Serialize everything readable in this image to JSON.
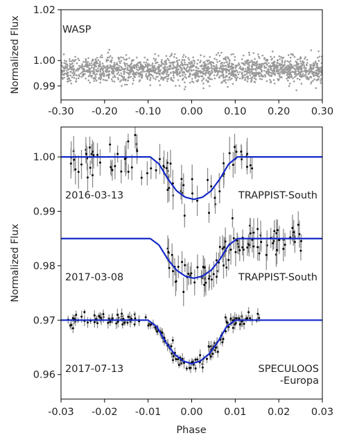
{
  "chart_data": [
    {
      "type": "scatter",
      "ylabel": "Normalized Flux",
      "xlim": [
        -0.3,
        0.3
      ],
      "ylim": [
        0.9845,
        1.02
      ],
      "xticks": [
        -0.3,
        -0.2,
        -0.1,
        0.0,
        0.1,
        0.2,
        0.3
      ],
      "xtick_labels": [
        "-0.30",
        "-0.20",
        "-0.10",
        "0.00",
        "0.10",
        "0.20",
        "0.30"
      ],
      "yticks": [
        0.99,
        1.0,
        1.02
      ],
      "ytick_labels": [
        "0.99",
        "1.00",
        "1.02"
      ],
      "grid": false,
      "series": [
        {
          "name": "WASP",
          "color": "#999999",
          "x_range": [
            -0.3,
            0.3
          ],
          "center": 0.9965,
          "scatter_std": 0.0025,
          "point_count": 1800
        }
      ]
    },
    {
      "type": "line",
      "xlabel": "Phase",
      "ylabel": "Normalized Flux",
      "xlim": [
        -0.03,
        0.03
      ],
      "ylim": [
        0.9555,
        1.0055
      ],
      "xticks": [
        -0.03,
        -0.02,
        -0.01,
        0.0,
        0.01,
        0.02,
        0.03
      ],
      "xtick_labels": [
        "-0.03",
        "-0.02",
        "-0.01",
        "0.00",
        "0.01",
        "0.02",
        "0.03"
      ],
      "yticks": [
        0.96,
        0.97,
        0.98,
        0.99,
        1.0
      ],
      "ytick_labels": [
        "0.96",
        "0.97",
        "0.98",
        "0.99",
        "1.00"
      ],
      "grid": false,
      "model_color": "#1428c8",
      "series": [
        {
          "date": "2017-07-13",
          "instrument": [
            "SPECULOOS",
            "-Europa"
          ],
          "baseline": 0.97,
          "depth": 0.008,
          "model_x": [
            -0.03,
            -0.01,
            -0.008,
            -0.006,
            -0.004,
            -0.002,
            0.0,
            0.002,
            0.004,
            0.006,
            0.008,
            0.01,
            0.03
          ],
          "model_y": [
            0.97,
            0.97,
            0.9688,
            0.966,
            0.9638,
            0.9625,
            0.962,
            0.9625,
            0.9638,
            0.966,
            0.9688,
            0.97,
            0.97
          ],
          "data_x_range": [
            -0.0295,
            0.0165
          ],
          "point_count": 170,
          "scatter_std": 0.0007,
          "error_bar": 0.0008
        },
        {
          "date": "2017-03-08",
          "instrument": [
            "TRAPPIST-South"
          ],
          "baseline": 0.985,
          "depth": 0.0073,
          "model_x": [
            -0.03,
            -0.0095,
            -0.0075,
            -0.0055,
            -0.0035,
            -0.0015,
            0.0005,
            0.0025,
            0.0045,
            0.0065,
            0.0085,
            0.0105,
            0.03
          ],
          "model_y": [
            0.985,
            0.985,
            0.9838,
            0.9812,
            0.9792,
            0.9781,
            0.9777,
            0.9781,
            0.9792,
            0.9812,
            0.9838,
            0.985,
            0.985
          ],
          "data_x_range": [
            -0.0055,
            0.0255
          ],
          "point_count": 95,
          "scatter_std": 0.0015,
          "error_bar": 0.002
        },
        {
          "date": "2016-03-13",
          "instrument": [
            "TRAPPIST-South"
          ],
          "baseline": 1.0,
          "depth": 0.0078,
          "model_x": [
            -0.03,
            -0.0095,
            -0.0075,
            -0.0055,
            -0.0035,
            -0.0015,
            0.0005,
            0.0025,
            0.0045,
            0.0065,
            0.0085,
            0.0105,
            0.03
          ],
          "model_y": [
            1.0,
            1.0,
            0.9987,
            0.996,
            0.9938,
            0.9926,
            0.9922,
            0.9926,
            0.9938,
            0.996,
            0.9987,
            1.0,
            1.0
          ],
          "data_x_range": [
            -0.029,
            0.015
          ],
          "point_count": 85,
          "scatter_std": 0.0018,
          "error_bar": 0.0022
        }
      ]
    }
  ]
}
